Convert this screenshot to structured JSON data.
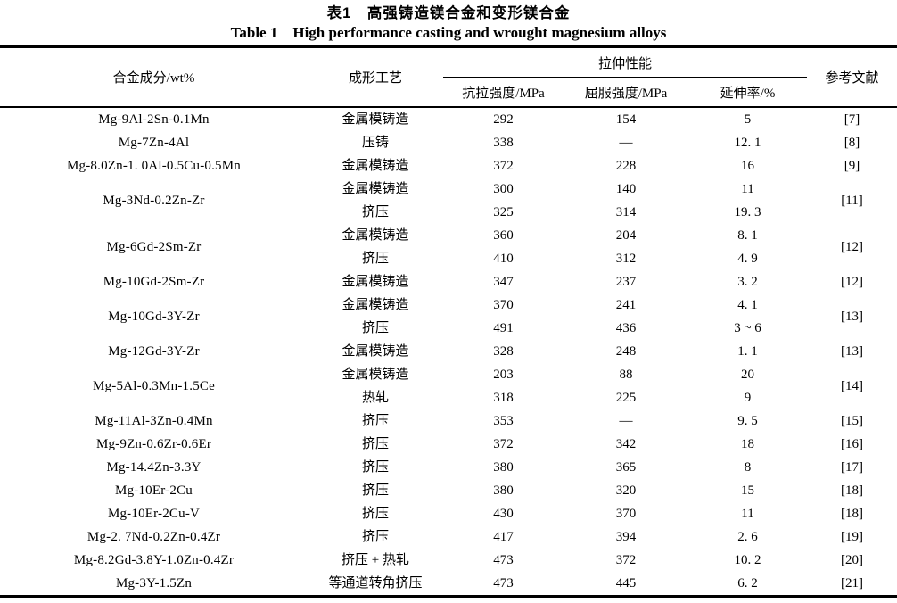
{
  "title": {
    "zh": "表1　高强铸造镁合金和变形镁合金",
    "en": "Table 1　High performance casting and wrought magnesium alloys"
  },
  "table": {
    "headers": {
      "alloy": "合金成分/wt%",
      "process": "成形工艺",
      "tensile_group": "拉伸性能",
      "uts": "抗拉强度/MPa",
      "ys": "屈服强度/MPa",
      "elong": "延伸率/%",
      "ref": "参考文献"
    },
    "rows": [
      {
        "alloy": "Mg-9Al-2Sn-0.1Mn",
        "process": "金属模铸造",
        "uts": "292",
        "ys": "154",
        "elong": "5",
        "ref": "[7]"
      },
      {
        "alloy": "Mg-7Zn-4Al",
        "process": "压铸",
        "uts": "338",
        "ys": "—",
        "elong": "12. 1",
        "ref": "[8]"
      },
      {
        "alloy": "Mg-8.0Zn-1. 0Al-0.5Cu-0.5Mn",
        "process": "金属模铸造",
        "uts": "372",
        "ys": "228",
        "elong": "16",
        "ref": "[9]"
      },
      {
        "alloy": "Mg-3Nd-0.2Zn-Zr",
        "process": "金属模铸造\n挤压",
        "uts": "300\n325",
        "ys": "140\n314",
        "elong": "11\n19. 3",
        "ref": "[11]"
      },
      {
        "alloy": "Mg-6Gd-2Sm-Zr",
        "process": "金属模铸造\n挤压",
        "uts": "360\n410",
        "ys": "204\n312",
        "elong": "8. 1\n4. 9",
        "ref": "[12]"
      },
      {
        "alloy": "Mg-10Gd-2Sm-Zr",
        "process": "金属模铸造",
        "uts": "347",
        "ys": "237",
        "elong": "3. 2",
        "ref": "[12]"
      },
      {
        "alloy": "Mg-10Gd-3Y-Zr",
        "process": "金属模铸造\n挤压",
        "uts": "370\n491",
        "ys": "241\n436",
        "elong": "4. 1\n3 ~ 6",
        "ref": "[13]"
      },
      {
        "alloy": "Mg-12Gd-3Y-Zr",
        "process": "金属模铸造",
        "uts": "328",
        "ys": "248",
        "elong": "1. 1",
        "ref": "[13]"
      },
      {
        "alloy": "Mg-5Al-0.3Mn-1.5Ce",
        "process": "金属模铸造\n热轧",
        "uts": "203\n318",
        "ys": "88\n225",
        "elong": "20\n9",
        "ref": "[14]"
      },
      {
        "alloy": "Mg-11Al-3Zn-0.4Mn",
        "process": "挤压",
        "uts": "353",
        "ys": "—",
        "elong": "9. 5",
        "ref": "[15]"
      },
      {
        "alloy": "Mg-9Zn-0.6Zr-0.6Er",
        "process": "挤压",
        "uts": "372",
        "ys": "342",
        "elong": "18",
        "ref": "[16]"
      },
      {
        "alloy": "Mg-14.4Zn-3.3Y",
        "process": "挤压",
        "uts": "380",
        "ys": "365",
        "elong": "8",
        "ref": "[17]"
      },
      {
        "alloy": "Mg-10Er-2Cu",
        "process": "挤压",
        "uts": "380",
        "ys": "320",
        "elong": "15",
        "ref": "[18]"
      },
      {
        "alloy": "Mg-10Er-2Cu-V",
        "process": "挤压",
        "uts": "430",
        "ys": "370",
        "elong": "11",
        "ref": "[18]"
      },
      {
        "alloy": "Mg-2. 7Nd-0.2Zn-0.4Zr",
        "process": "挤压",
        "uts": "417",
        "ys": "394",
        "elong": "2. 6",
        "ref": "[19]"
      },
      {
        "alloy": "Mg-8.2Gd-3.8Y-1.0Zn-0.4Zr",
        "process": "挤压 + 热轧",
        "uts": "473",
        "ys": "372",
        "elong": "10. 2",
        "ref": "[20]"
      },
      {
        "alloy": "Mg-3Y-1.5Zn",
        "process": "等通道转角挤压",
        "uts": "473",
        "ys": "445",
        "elong": "6. 2",
        "ref": "[21]"
      }
    ]
  }
}
